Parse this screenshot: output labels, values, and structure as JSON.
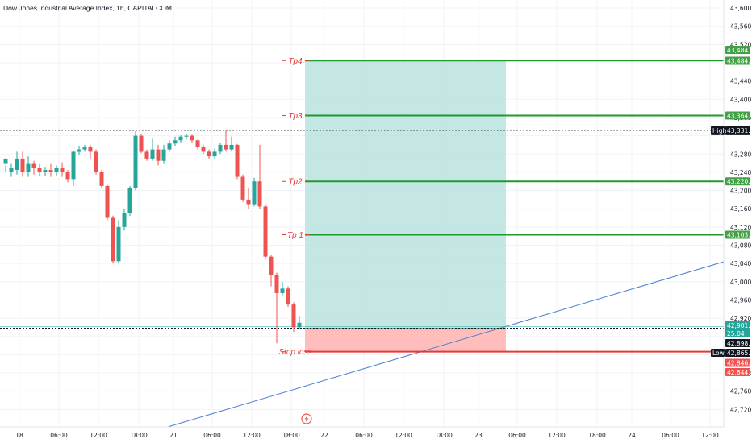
{
  "header": {
    "title": "Dow Jones Industrial Average Index, 1h, CAPITALCOM"
  },
  "colors": {
    "up": "#26a69a",
    "down": "#ef5350",
    "tp_line": "#1e9a2e",
    "sl_line": "#e53935",
    "label_red": "#e53935",
    "profit_zone": "#b2dfdb",
    "loss_zone": "#ffb3b0",
    "trendline": "#4a7fd4",
    "price_tag_green": "#26a69a",
    "tp_tag": "#43a047",
    "dark_tag": "#131722"
  },
  "y_axis": {
    "ticks": [
      "43,600.0",
      "43,560.0",
      "43,520.0",
      "43,440.0",
      "43,400.0",
      "43,360.0",
      "43,280.0",
      "43,240.0",
      "43,200.0",
      "43,160.0",
      "43,120.0",
      "43,080.0",
      "43,040.0",
      "43,000.0",
      "42,960.0",
      "42,920.0",
      "42,800.0",
      "42,760.0",
      "42,720.0"
    ],
    "tick_values": [
      43600,
      43560,
      43520,
      43440,
      43400,
      43360,
      43280,
      43240,
      43200,
      43160,
      43120,
      43080,
      43040,
      43000,
      42960,
      42920,
      42800,
      42760,
      42720
    ]
  },
  "x_axis": {
    "labels": [
      "18",
      "06:00",
      "12:00",
      "18:00",
      "21",
      "06:00",
      "12:00",
      "18:00",
      "22",
      "06:00",
      "12:00",
      "18:00",
      "23",
      "06:00",
      "12:00",
      "18:00",
      "24",
      "06:00",
      "12:00"
    ]
  },
  "levels": [
    {
      "name": "Tp4",
      "value": 43484.8
    },
    {
      "name": "Tp3",
      "value": 43364.4
    },
    {
      "name": "Tp2",
      "value": 43220.0
    },
    {
      "name": "Tp 1",
      "value": 43103.0
    },
    {
      "name": "Stop loss",
      "value": 42846.6
    }
  ],
  "price_tags": {
    "tp4_a": "43,484.8",
    "tp4_b": "43,484.8",
    "tp3": "43,364.4",
    "high_label": "High",
    "high_value": "43,331.9",
    "tp2": "43,220.0",
    "tp1": "43,103.0",
    "current_price": "42,901.7",
    "countdown": "25:04",
    "entry": "42,898.2",
    "low_label": "Low",
    "low_value": "42,865.7",
    "sl_a": "42,846.6",
    "sl_b": "42,844.8"
  },
  "chart_data": {
    "type": "candlestick",
    "title": "Dow Jones Industrial Average Index, 1h, CAPITALCOM",
    "ylim": [
      42690,
      43620
    ],
    "y_scale": "linear",
    "grid": true,
    "entry_price": 42898.2,
    "current_price": 42901.7,
    "high": 43331.9,
    "low": 42865.7,
    "stop_loss": 42846.6,
    "take_profits": [
      43103.0,
      43220.0,
      43364.4,
      43484.8
    ],
    "candles": [
      [
        43260,
        43270,
        43255,
        43240
      ],
      [
        43240,
        43250,
        43260,
        43230
      ],
      [
        43245,
        43270,
        43285,
        43235
      ],
      [
        43270,
        43240,
        43285,
        43230
      ],
      [
        43240,
        43260,
        43275,
        43230
      ],
      [
        43260,
        43250,
        43265,
        43235
      ],
      [
        43250,
        43240,
        43258,
        43233
      ],
      [
        43240,
        43245,
        43252,
        43232
      ],
      [
        43245,
        43240,
        43260,
        43230
      ],
      [
        43240,
        43250,
        43255,
        43233
      ],
      [
        43250,
        43240,
        43262,
        43230
      ],
      [
        43240,
        43225,
        43245,
        43218
      ],
      [
        43225,
        43285,
        43288,
        43210
      ],
      [
        43285,
        43290,
        43298,
        43278
      ],
      [
        43290,
        43295,
        43300,
        43285
      ],
      [
        43295,
        43285,
        43300,
        43270
      ],
      [
        43285,
        43240,
        43290,
        43235
      ],
      [
        43240,
        43210,
        43245,
        43205
      ],
      [
        43210,
        43140,
        43212,
        43135
      ],
      [
        43140,
        43045,
        43145,
        43040
      ],
      [
        43045,
        43120,
        43135,
        43040
      ],
      [
        43120,
        43150,
        43160,
        43112
      ],
      [
        43150,
        43205,
        43210,
        43145
      ],
      [
        43205,
        43320,
        43330,
        43200
      ],
      [
        43320,
        43285,
        43325,
        43282
      ],
      [
        43285,
        43270,
        43290,
        43265
      ],
      [
        43270,
        43290,
        43315,
        43265
      ],
      [
        43290,
        43265,
        43300,
        43255
      ],
      [
        43265,
        43290,
        43300,
        43260
      ],
      [
        43290,
        43303,
        43310,
        43285
      ],
      [
        43303,
        43310,
        43318,
        43298
      ],
      [
        43310,
        43318,
        43322,
        43305
      ],
      [
        43318,
        43320,
        43325,
        43312
      ],
      [
        43320,
        43310,
        43324,
        43305
      ],
      [
        43310,
        43295,
        43312,
        43290
      ],
      [
        43295,
        43285,
        43300,
        43280
      ],
      [
        43285,
        43275,
        43290,
        43270
      ],
      [
        43275,
        43285,
        43292,
        43270
      ],
      [
        43285,
        43300,
        43305,
        43280
      ],
      [
        43300,
        43290,
        43332,
        43285
      ],
      [
        43290,
        43300,
        43318,
        43285
      ],
      [
        43300,
        43230,
        43302,
        43225
      ],
      [
        43230,
        43180,
        43235,
        43175
      ],
      [
        43180,
        43170,
        43205,
        43160
      ],
      [
        43170,
        43220,
        43228,
        43165
      ],
      [
        43220,
        43165,
        43300,
        43160
      ],
      [
        43165,
        43055,
        43170,
        43050
      ],
      [
        43055,
        43015,
        43060,
        42990
      ],
      [
        43015,
        42975,
        43020,
        42865
      ],
      [
        42975,
        42985,
        43000,
        42970
      ],
      [
        42985,
        42950,
        42990,
        42945
      ],
      [
        42950,
        42900,
        42955,
        42890
      ],
      [
        42900,
        42910,
        42925,
        42895
      ]
    ]
  }
}
